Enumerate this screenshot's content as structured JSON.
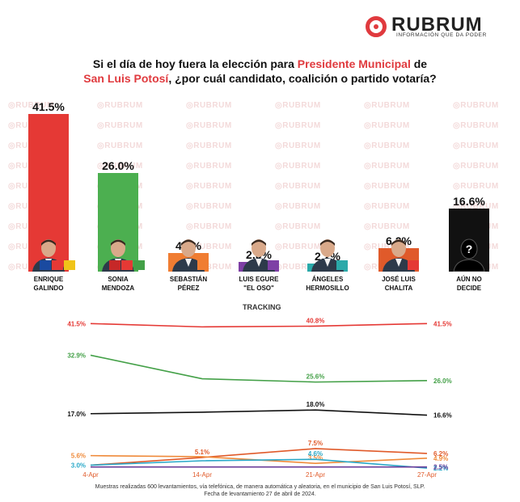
{
  "logo": {
    "word": "RUBRUM",
    "tagline": "INFORMACIÓN QUE DA PODER",
    "color": "#e03a3e"
  },
  "question": {
    "part1": "Si el día de hoy fuera la elección para ",
    "highlight1": "Presidente Municipal",
    "part2": " de",
    "highlight2": "San Luis Potosí",
    "part3": ", ¿por cuál candidato, coalición o partido votaría?"
  },
  "watermark": "RUBRUM",
  "chart_data": [
    {
      "type": "bar",
      "categories": [
        "ENRIQUE GALINDO",
        "SONIA MENDOZA",
        "SEBASTIÁN PÉREZ",
        "LUIS EGURE \"EL OSO\"",
        "ÁNGELES HERMOSILLO",
        "JOSÉ LUIS CHALITA",
        "AÚN NO DECIDE"
      ],
      "values": [
        41.5,
        26.0,
        4.9,
        2.5,
        2.2,
        6.2,
        16.6
      ],
      "value_labels": [
        "41.5%",
        "26.0%",
        "4.9%",
        "2.5%",
        "2.2%",
        "6.2%",
        "16.6%"
      ],
      "colors": [
        "#e53935",
        "#4caf50",
        "#f07d32",
        "#7e3fa5",
        "#2aa9a9",
        "#e05a2a",
        "#111111"
      ],
      "title": "",
      "ylim": [
        0,
        41.5
      ]
    },
    {
      "type": "line",
      "title": "TRACKING",
      "x": [
        "4-Apr",
        "14-Apr",
        "21-Apr",
        "27-Apr"
      ],
      "series": [
        {
          "color": "#e53935",
          "values": [
            41.5,
            40.6,
            40.8,
            41.5
          ],
          "labels": [
            "41.5%",
            "",
            "40.8%",
            "41.5%"
          ]
        },
        {
          "color": "#43a047",
          "values": [
            32.9,
            26.5,
            25.6,
            26.0
          ],
          "labels": [
            "32.9%",
            "",
            "25.6%",
            "26.0%"
          ]
        },
        {
          "color": "#111111",
          "values": [
            17.0,
            17.4,
            18.0,
            16.6
          ],
          "labels": [
            "17.0%",
            "",
            "18.0%",
            "16.6%"
          ]
        },
        {
          "color": "#e05a2a",
          "values": [
            3.0,
            5.1,
            7.5,
            6.2
          ],
          "labels": [
            "",
            "5.1%",
            "7.5%",
            "6.2%"
          ]
        },
        {
          "color": "#ef8a3a",
          "values": [
            5.6,
            5.3,
            3.5,
            4.9
          ],
          "labels": [
            "5.6%",
            "",
            "3.5%",
            "4.9%"
          ]
        },
        {
          "color": "#2aa9c9",
          "values": [
            3.0,
            4.2,
            4.6,
            2.2
          ],
          "labels": [
            "3.0%",
            "",
            "4.6%",
            "2.2%"
          ]
        },
        {
          "color": "#6a3d9a",
          "values": [
            2.5,
            2.5,
            2.5,
            2.5
          ],
          "labels": [
            "",
            "",
            "",
            "2.5%"
          ]
        }
      ]
    }
  ],
  "footnote": {
    "line1": "Muestras realizadas 600 levantamientos, vía telefónica, de manera automática y aleatoria, en el municipio de San Luis Potosí, SLP.",
    "line2": "Fecha de levantamiento 27 de abril de 2024."
  }
}
